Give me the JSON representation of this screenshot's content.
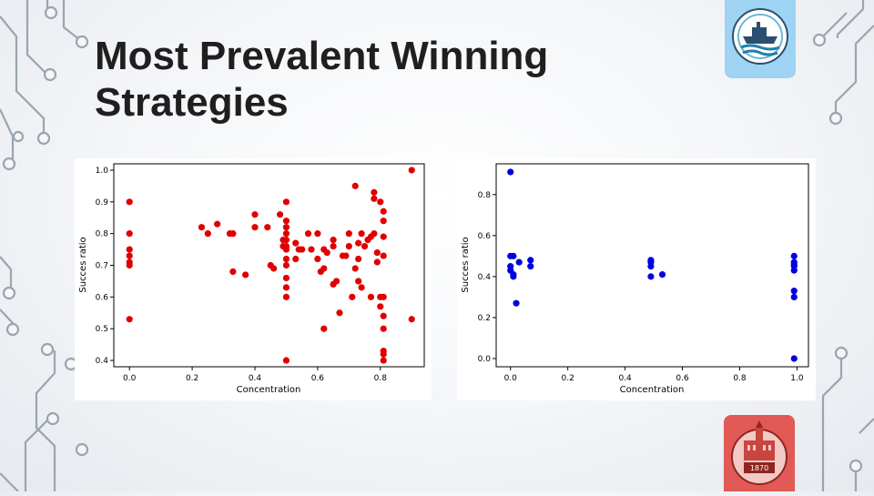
{
  "slide": {
    "title_line1": "Most Prevalent Winning",
    "title_line2": "Strategies"
  },
  "colors": {
    "left_points": "#e00000",
    "right_points": "#0000e0",
    "circuit": "#9aa5af",
    "ship_logo_bg": "#9fd3f3",
    "seal_logo_bg": "#e15a55"
  },
  "logos": {
    "top_right": "ship-emblem",
    "bottom_right": "university-seal",
    "seal_year": "1870"
  },
  "chart_data": [
    {
      "type": "scatter",
      "title": "",
      "xlabel": "Concentration",
      "ylabel": "Succes ratio",
      "xlim": [
        -0.05,
        0.94
      ],
      "ylim": [
        0.38,
        1.02
      ],
      "xticks": [
        0.0,
        0.2,
        0.4,
        0.6,
        0.8
      ],
      "xtick_labels": [
        "0.0",
        "0.2",
        "0.4",
        "0.6",
        "0.8"
      ],
      "yticks": [
        0.4,
        0.5,
        0.6,
        0.7,
        0.8,
        0.9,
        1.0
      ],
      "ytick_labels": [
        "0.4",
        "0.5",
        "0.6",
        "0.7",
        "0.8",
        "0.9",
        "1.0"
      ],
      "grid": false,
      "series": [
        {
          "color": "#e00000",
          "points": [
            [
              0.0,
              0.9
            ],
            [
              0.0,
              0.8
            ],
            [
              0.0,
              0.75
            ],
            [
              0.0,
              0.73
            ],
            [
              0.0,
              0.71
            ],
            [
              0.0,
              0.7
            ],
            [
              0.0,
              0.53
            ],
            [
              0.23,
              0.82
            ],
            [
              0.25,
              0.8
            ],
            [
              0.28,
              0.83
            ],
            [
              0.32,
              0.8
            ],
            [
              0.33,
              0.8
            ],
            [
              0.33,
              0.68
            ],
            [
              0.37,
              0.67
            ],
            [
              0.4,
              0.86
            ],
            [
              0.4,
              0.82
            ],
            [
              0.44,
              0.82
            ],
            [
              0.45,
              0.7
            ],
            [
              0.46,
              0.69
            ],
            [
              0.48,
              0.86
            ],
            [
              0.49,
              0.78
            ],
            [
              0.49,
              0.76
            ],
            [
              0.5,
              0.9
            ],
            [
              0.5,
              0.84
            ],
            [
              0.5,
              0.82
            ],
            [
              0.5,
              0.8
            ],
            [
              0.5,
              0.78
            ],
            [
              0.5,
              0.76
            ],
            [
              0.5,
              0.75
            ],
            [
              0.5,
              0.72
            ],
            [
              0.5,
              0.7
            ],
            [
              0.5,
              0.66
            ],
            [
              0.5,
              0.63
            ],
            [
              0.5,
              0.6
            ],
            [
              0.5,
              0.4
            ],
            [
              0.53,
              0.77
            ],
            [
              0.53,
              0.72
            ],
            [
              0.54,
              0.75
            ],
            [
              0.55,
              0.75
            ],
            [
              0.57,
              0.8
            ],
            [
              0.58,
              0.75
            ],
            [
              0.6,
              0.8
            ],
            [
              0.6,
              0.72
            ],
            [
              0.61,
              0.68
            ],
            [
              0.62,
              0.75
            ],
            [
              0.62,
              0.5
            ],
            [
              0.62,
              0.69
            ],
            [
              0.63,
              0.74
            ],
            [
              0.65,
              0.78
            ],
            [
              0.65,
              0.76
            ],
            [
              0.65,
              0.64
            ],
            [
              0.66,
              0.65
            ],
            [
              0.67,
              0.55
            ],
            [
              0.68,
              0.73
            ],
            [
              0.69,
              0.73
            ],
            [
              0.7,
              0.8
            ],
            [
              0.7,
              0.76
            ],
            [
              0.71,
              0.6
            ],
            [
              0.72,
              0.95
            ],
            [
              0.72,
              0.69
            ],
            [
              0.73,
              0.77
            ],
            [
              0.73,
              0.72
            ],
            [
              0.73,
              0.65
            ],
            [
              0.74,
              0.8
            ],
            [
              0.74,
              0.63
            ],
            [
              0.75,
              0.76
            ],
            [
              0.76,
              0.78
            ],
            [
              0.77,
              0.79
            ],
            [
              0.77,
              0.6
            ],
            [
              0.78,
              0.93
            ],
            [
              0.78,
              0.91
            ],
            [
              0.78,
              0.8
            ],
            [
              0.79,
              0.74
            ],
            [
              0.79,
              0.71
            ],
            [
              0.8,
              0.9
            ],
            [
              0.8,
              0.6
            ],
            [
              0.8,
              0.57
            ],
            [
              0.81,
              0.87
            ],
            [
              0.81,
              0.84
            ],
            [
              0.81,
              0.79
            ],
            [
              0.81,
              0.73
            ],
            [
              0.81,
              0.6
            ],
            [
              0.81,
              0.54
            ],
            [
              0.81,
              0.5
            ],
            [
              0.81,
              0.43
            ],
            [
              0.81,
              0.42
            ],
            [
              0.81,
              0.4
            ],
            [
              0.9,
              1.0
            ],
            [
              0.9,
              0.53
            ]
          ]
        }
      ]
    },
    {
      "type": "scatter",
      "title": "",
      "xlabel": "Concentration",
      "ylabel": "Succes ratio",
      "xlim": [
        -0.05,
        1.04
      ],
      "ylim": [
        -0.04,
        0.95
      ],
      "xticks": [
        0.0,
        0.2,
        0.4,
        0.6,
        0.8,
        1.0
      ],
      "xtick_labels": [
        "0.0",
        "0.2",
        "0.4",
        "0.6",
        "0.8",
        "1.0"
      ],
      "yticks": [
        0.0,
        0.2,
        0.4,
        0.6,
        0.8
      ],
      "ytick_labels": [
        "0.0",
        "0.2",
        "0.4",
        "0.6",
        "0.8"
      ],
      "grid": false,
      "series": [
        {
          "color": "#0000e0",
          "points": [
            [
              0.0,
              0.91
            ],
            [
              0.0,
              0.5
            ],
            [
              0.01,
              0.5
            ],
            [
              0.0,
              0.45
            ],
            [
              0.0,
              0.43
            ],
            [
              0.01,
              0.41
            ],
            [
              0.01,
              0.4
            ],
            [
              0.02,
              0.27
            ],
            [
              0.03,
              0.47
            ],
            [
              0.07,
              0.48
            ],
            [
              0.07,
              0.45
            ],
            [
              0.49,
              0.48
            ],
            [
              0.49,
              0.47
            ],
            [
              0.49,
              0.45
            ],
            [
              0.49,
              0.4
            ],
            [
              0.53,
              0.41
            ],
            [
              0.99,
              0.5
            ],
            [
              0.99,
              0.47
            ],
            [
              0.99,
              0.46
            ],
            [
              0.99,
              0.45
            ],
            [
              0.99,
              0.43
            ],
            [
              0.99,
              0.33
            ],
            [
              0.99,
              0.3
            ],
            [
              0.99,
              0.0
            ]
          ]
        }
      ]
    }
  ]
}
